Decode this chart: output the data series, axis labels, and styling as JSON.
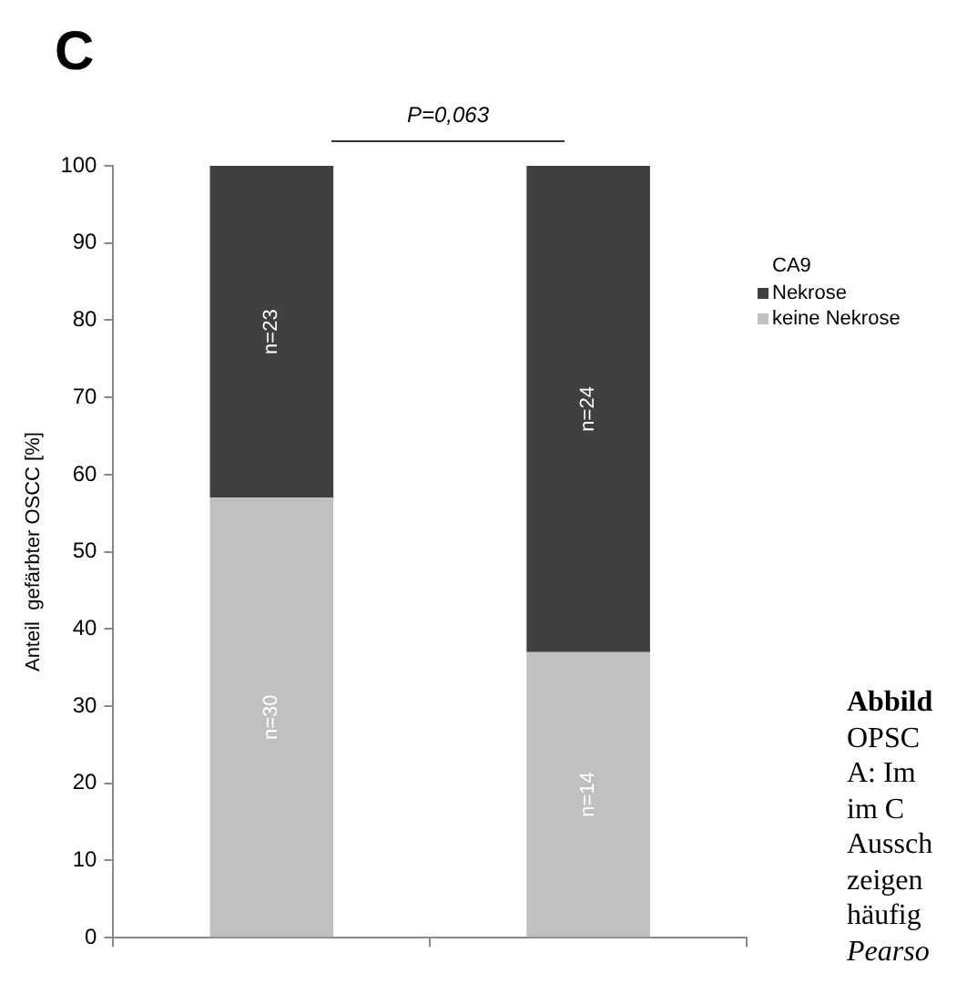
{
  "chart_data": {
    "type": "bar",
    "title": "C",
    "ylabel": "Anteil  gefärbter OSCC [%]",
    "legend_title": "CA9",
    "categories": [
      null,
      null
    ],
    "stacked": true,
    "series": [
      {
        "name": "keine Nekrose",
        "color": "#c0c0c0",
        "values": [
          57,
          37
        ]
      },
      {
        "name": "Nekrose",
        "color": "#404040",
        "values": [
          43,
          63
        ]
      }
    ],
    "ylim": [
      0,
      100
    ],
    "yticks": [
      0,
      10,
      20,
      30,
      40,
      50,
      60,
      70,
      80,
      90,
      100
    ],
    "grid": false,
    "legend": "right",
    "annotations": [
      "P=0,063",
      "n=30",
      "n=14",
      "n=23",
      "n=24",
      "Abbild",
      "OPSC",
      "A: Im",
      "im C",
      "Aussch",
      "zeigen",
      "häufig",
      "Pearso"
    ]
  }
}
